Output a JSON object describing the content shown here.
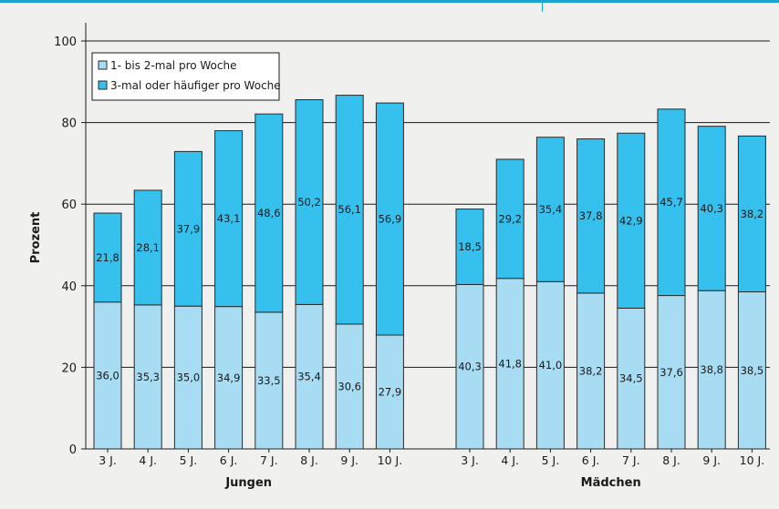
{
  "chart_data": {
    "type": "bar",
    "stacked": true,
    "ylabel": "Prozent",
    "ylim": [
      0,
      100
    ],
    "yticks": [
      0,
      20,
      40,
      60,
      80,
      100
    ],
    "grid": "horizontal",
    "legend_position": "top-left",
    "groups": [
      {
        "name": "Jungen",
        "categories": [
          "3 J.",
          "4 J.",
          "5 J.",
          "6 J.",
          "7 J.",
          "8 J.",
          "9 J.",
          "10 J."
        ],
        "series": [
          {
            "name": "1- bis 2-mal pro Woche",
            "values": [
              36.0,
              35.3,
              35.0,
              34.9,
              33.5,
              35.4,
              30.6,
              27.9
            ],
            "labels": [
              "36,0",
              "35,3",
              "35,0",
              "34,9",
              "33,5",
              "35,4",
              "30,6",
              "27,9"
            ]
          },
          {
            "name": "3-mal oder häufiger pro Woche",
            "values": [
              21.8,
              28.1,
              37.9,
              43.1,
              48.6,
              50.2,
              56.1,
              56.9
            ],
            "labels": [
              "21,8",
              "28,1",
              "37,9",
              "43,1",
              "48,6",
              "50,2",
              "56,1",
              "56,9"
            ]
          }
        ]
      },
      {
        "name": "Mädchen",
        "categories": [
          "3 J.",
          "4 J.",
          "5 J.",
          "6 J.",
          "7 J.",
          "8 J.",
          "9 J.",
          "10 J."
        ],
        "series": [
          {
            "name": "1- bis 2-mal pro Woche",
            "values": [
              40.3,
              41.8,
              41.0,
              38.2,
              34.5,
              37.6,
              38.8,
              38.5
            ],
            "labels": [
              "40,3",
              "41,8",
              "41,0",
              "38,2",
              "34,5",
              "37,6",
              "38,8",
              "38,5"
            ]
          },
          {
            "name": "3-mal oder häufiger pro Woche",
            "values": [
              18.5,
              29.2,
              35.4,
              37.8,
              42.9,
              45.7,
              40.3,
              38.2
            ],
            "labels": [
              "18,5",
              "29,2",
              "35,4",
              "37,8",
              "42,9",
              "45,7",
              "40,3",
              "38,2"
            ]
          }
        ]
      }
    ],
    "legend": [
      "1- bis 2-mal pro Woche",
      "3-mal oder häufiger pro Woche"
    ],
    "colors": {
      "series_0": "#a8dcf3",
      "series_1": "#35c0ed",
      "bar_stroke": "#2a2a2a",
      "grid": "#1a1a1a",
      "background": "#f0f0ef",
      "frame_accent": "#1aa3cf"
    }
  }
}
